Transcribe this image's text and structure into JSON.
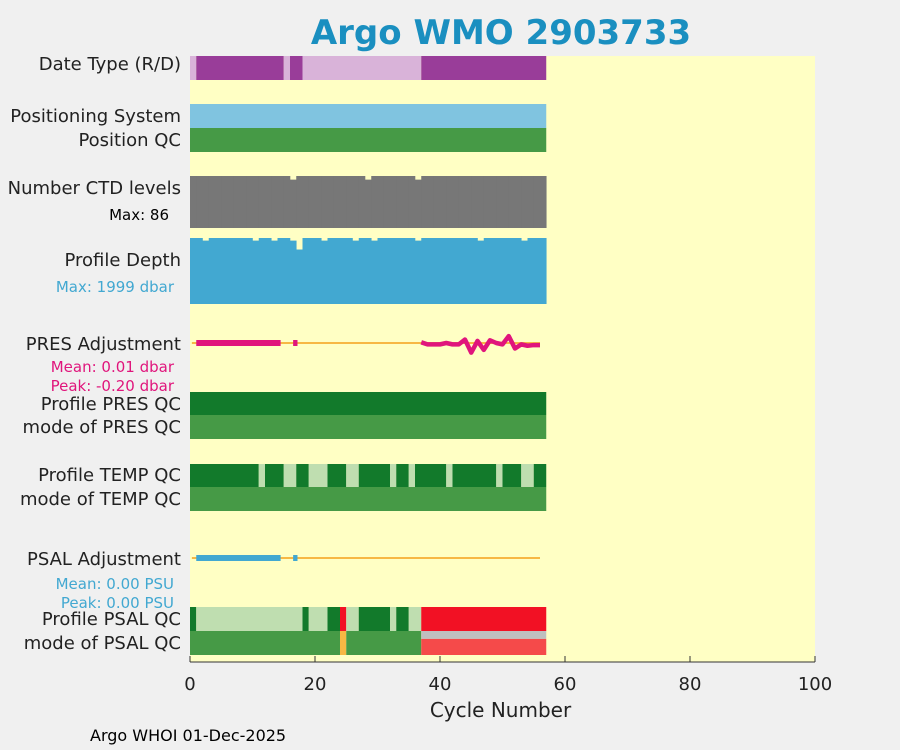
{
  "title": "Argo WMO 2903733",
  "footer": "Argo WHOI 01-Dec-2025",
  "colors": {
    "title": "#1a8fc0",
    "background": "#ffffc4",
    "purple_dark": "#993d99",
    "purple_light": "#d9b3d9",
    "lightblue": "#80c4e0",
    "green_mid": "#469a46",
    "green_dark": "#127a2b",
    "green_pale": "#bfdeb0",
    "gray": "#777777",
    "depth_blue": "#42a8d1",
    "magenta": "#e0157c",
    "orange": "#f7b844",
    "psal_blue": "#42a8d1",
    "red": "#f21124",
    "red_light": "#f54a4a",
    "silver": "#bfbfbf"
  },
  "chart_data": {
    "type": "heatmap",
    "xlabel": "Cycle Number",
    "xlim": [
      0,
      100
    ],
    "xticks": [
      0,
      20,
      40,
      60,
      80,
      100
    ],
    "rows": [
      {
        "label": "Date Type (R/D)",
        "kind": "segments",
        "segments": [
          [
            0,
            1,
            "purple_light"
          ],
          [
            1,
            15,
            "purple_dark"
          ],
          [
            15,
            16,
            "purple_light"
          ],
          [
            16,
            18,
            "purple_dark"
          ],
          [
            18,
            37,
            "purple_light"
          ],
          [
            37,
            57,
            "purple_dark"
          ]
        ]
      },
      {
        "label": "Positioning System",
        "kind": "segments",
        "segments": [
          [
            0,
            57,
            "lightblue"
          ]
        ]
      },
      {
        "label": "Position QC",
        "kind": "segments",
        "segments": [
          [
            0,
            57,
            "green_mid"
          ]
        ]
      },
      {
        "label": "Number CTD levels",
        "sublabel": "Max: 86",
        "kind": "levels",
        "color": "gray",
        "max": 86,
        "values": [
          86,
          86,
          86,
          86,
          86,
          86,
          86,
          86,
          86,
          86,
          86,
          86,
          86,
          86,
          86,
          86,
          80,
          86,
          86,
          86,
          86,
          86,
          86,
          86,
          86,
          86,
          86,
          86,
          80,
          86,
          86,
          86,
          86,
          86,
          86,
          86,
          80,
          86,
          86,
          86,
          86,
          86,
          86,
          86,
          86,
          86,
          86,
          86,
          86,
          86,
          86,
          86,
          86,
          86,
          86,
          86,
          86
        ]
      },
      {
        "label": "Profile Depth",
        "sublabel": "Max: 1999 dbar",
        "kind": "levels",
        "color": "depth_blue",
        "max": 1999,
        "values": [
          1999,
          1999,
          1920,
          1999,
          1999,
          1999,
          1999,
          1999,
          1999,
          1999,
          1920,
          1999,
          1999,
          1920,
          1999,
          1999,
          1920,
          1650,
          1999,
          1999,
          1999,
          1920,
          1999,
          1999,
          1999,
          1999,
          1920,
          1999,
          1999,
          1920,
          1999,
          1999,
          1999,
          1999,
          1999,
          1999,
          1920,
          1999,
          1999,
          1999,
          1999,
          1999,
          1999,
          1999,
          1999,
          1999,
          1920,
          1999,
          1999,
          1999,
          1999,
          1999,
          1999,
          1920,
          1999,
          1999,
          1999
        ]
      },
      {
        "label": "PRES Adjustment",
        "sublabel": "Mean: 0.01 dbar",
        "sublabel2": "Peak: -0.20 dbar",
        "kind": "adjust",
        "color": "magenta",
        "baseline": "orange",
        "range": [
          -0.2,
          0.2
        ],
        "segments": [
          [
            1,
            14.5
          ],
          [
            16.5,
            17.2
          ]
        ],
        "x": [
          37,
          38,
          39,
          40,
          41,
          42,
          43,
          44,
          45,
          46,
          47,
          48,
          49,
          50,
          51,
          52,
          53,
          54,
          55,
          56
        ],
        "y": [
          0.01,
          -0.02,
          -0.02,
          -0.02,
          0,
          -0.02,
          -0.02,
          0.05,
          -0.14,
          0.03,
          -0.1,
          0.04,
          0.0,
          -0.02,
          0.1,
          -0.08,
          -0.02,
          -0.04,
          -0.03,
          -0.03
        ]
      },
      {
        "label": "Profile PRES QC",
        "kind": "segments",
        "segments": [
          [
            0,
            57,
            "green_dark"
          ]
        ]
      },
      {
        "label": "mode of PRES QC",
        "kind": "segments",
        "segments": [
          [
            0,
            57,
            "green_mid"
          ]
        ]
      },
      {
        "label": "Profile TEMP QC",
        "kind": "segments",
        "segments": [
          [
            0,
            11,
            "green_dark"
          ],
          [
            11,
            12,
            "green_pale"
          ],
          [
            12,
            15,
            "green_dark"
          ],
          [
            15,
            17,
            "green_pale"
          ],
          [
            17,
            19,
            "green_dark"
          ],
          [
            19,
            22,
            "green_pale"
          ],
          [
            22,
            25,
            "green_dark"
          ],
          [
            25,
            27,
            "green_pale"
          ],
          [
            27,
            32,
            "green_dark"
          ],
          [
            32,
            33,
            "green_pale"
          ],
          [
            33,
            35,
            "green_dark"
          ],
          [
            35,
            36,
            "green_pale"
          ],
          [
            36,
            41,
            "green_dark"
          ],
          [
            41,
            42,
            "green_pale"
          ],
          [
            42,
            49,
            "green_dark"
          ],
          [
            49,
            50,
            "green_pale"
          ],
          [
            50,
            53,
            "green_dark"
          ],
          [
            53,
            55,
            "green_pale"
          ],
          [
            55,
            57,
            "green_dark"
          ]
        ]
      },
      {
        "label": "mode of TEMP QC",
        "kind": "segments",
        "segments": [
          [
            0,
            57,
            "green_mid"
          ]
        ]
      },
      {
        "label": "PSAL Adjustment",
        "sublabel": "Mean: 0.00 PSU",
        "sublabel2": "Peak: 0.00 PSU",
        "kind": "adjust",
        "color": "psal_blue",
        "baseline": "orange",
        "range": [
          -0.2,
          0.2
        ],
        "segments": [
          [
            1,
            12
          ],
          [
            12,
            14.5
          ],
          [
            16.5,
            17.2
          ]
        ],
        "x": [],
        "y": []
      },
      {
        "label": "Profile PSAL QC",
        "kind": "segments",
        "segments": [
          [
            0,
            1,
            "green_dark"
          ],
          [
            1,
            18,
            "green_pale"
          ],
          [
            18,
            19,
            "green_dark"
          ],
          [
            19,
            22,
            "green_pale"
          ],
          [
            22,
            24,
            "green_dark"
          ],
          [
            24,
            25,
            "red"
          ],
          [
            25,
            27,
            "green_pale"
          ],
          [
            27,
            32,
            "green_dark"
          ],
          [
            32,
            33,
            "green_pale"
          ],
          [
            33,
            35,
            "green_dark"
          ],
          [
            35,
            37,
            "green_pale"
          ],
          [
            37,
            57,
            "red"
          ]
        ]
      },
      {
        "label": "mode of PSAL QC",
        "kind": "segments",
        "segments": [
          [
            0,
            24,
            "green_mid"
          ],
          [
            24,
            25,
            "orange"
          ],
          [
            25,
            37,
            "green_mid"
          ],
          [
            37,
            57,
            "silver_red"
          ]
        ]
      }
    ]
  }
}
